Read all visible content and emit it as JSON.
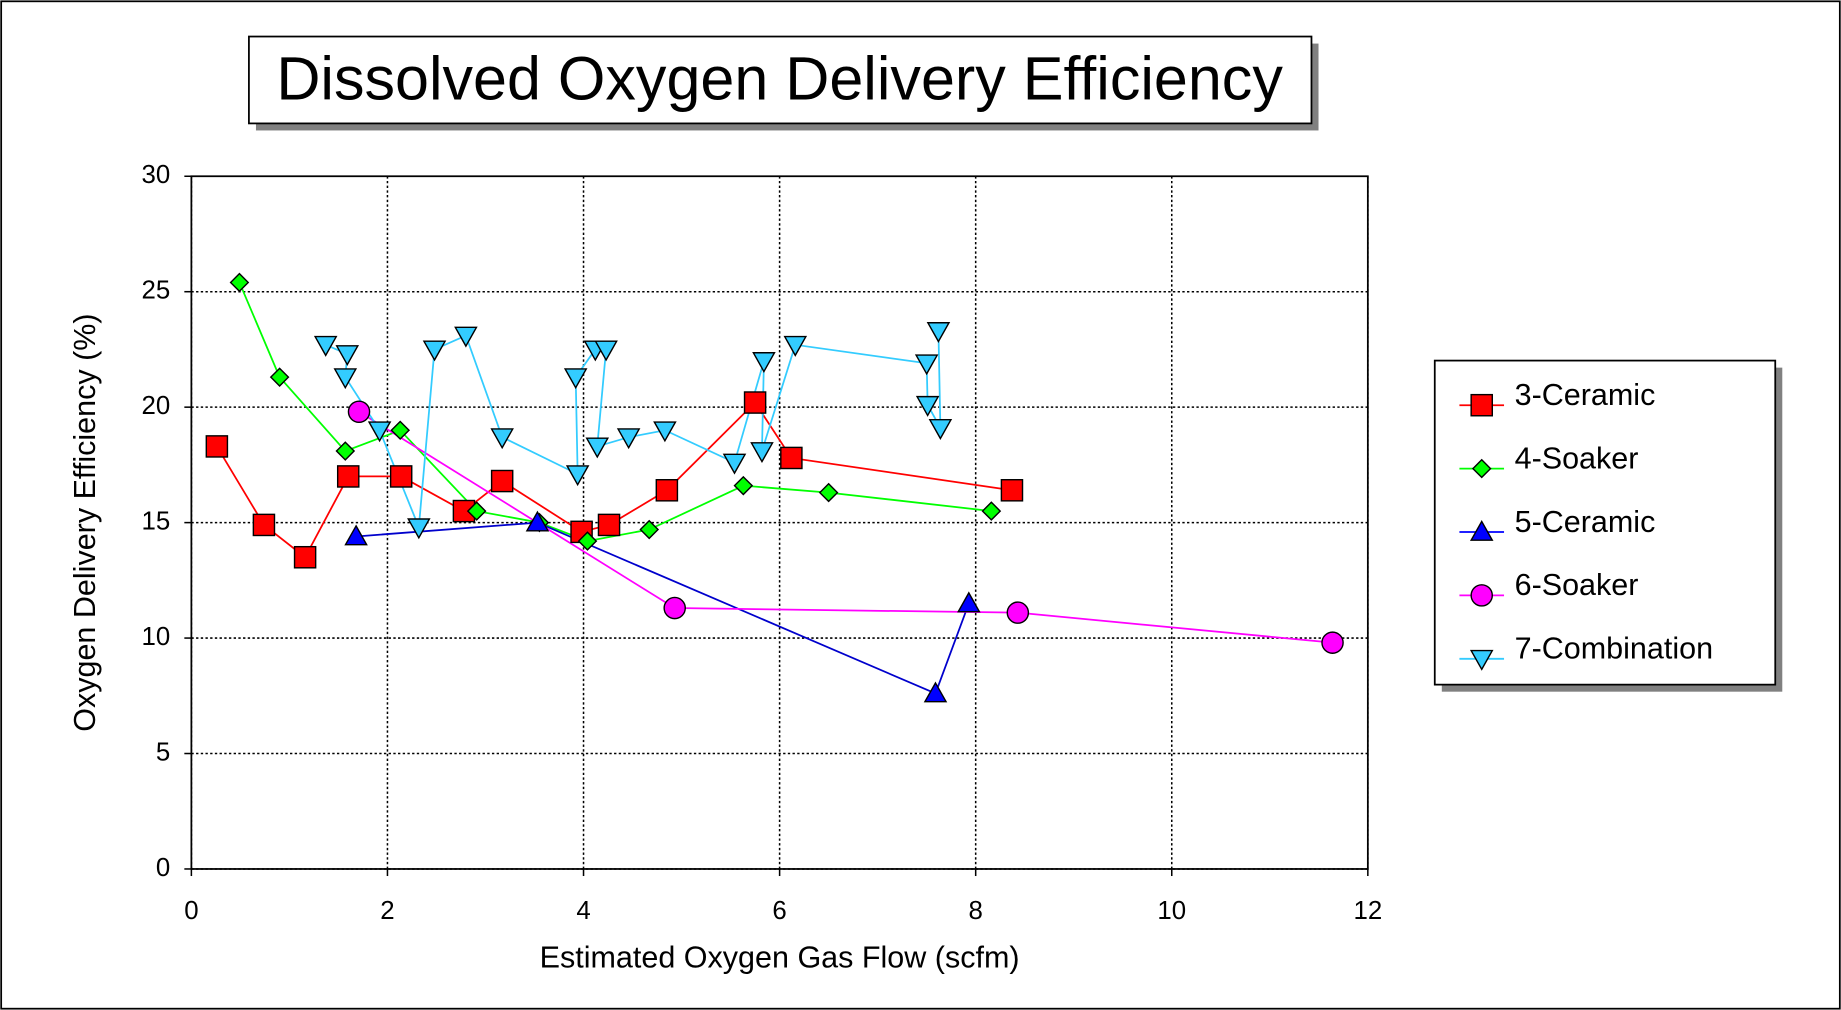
{
  "chart_data": {
    "type": "scatter",
    "title": "Dissolved Oxygen Delivery Efficiency",
    "x_label": "Estimated Oxygen Gas Flow (scfm)",
    "y_label": "Oxygen Delivery Efficiency (%)",
    "xlim": [
      0,
      12
    ],
    "xticks": [
      0,
      2,
      4,
      6,
      8,
      10,
      12
    ],
    "ylim": [
      0,
      30
    ],
    "yticks": [
      0,
      5,
      10,
      15,
      20,
      25,
      30
    ],
    "grid": true,
    "legend": "right",
    "series": [
      {
        "name": "3-Ceramic",
        "color": "#ff0000",
        "marker": "square",
        "x": [
          0.26,
          0.74,
          1.16,
          1.6,
          2.14,
          2.78,
          3.17,
          3.98,
          4.26,
          4.85,
          5.75,
          6.12,
          8.37
        ],
        "values": [
          18.3,
          14.9,
          13.5,
          17.0,
          17.0,
          15.5,
          16.8,
          14.6,
          14.9,
          16.4,
          20.2,
          17.8,
          16.4
        ]
      },
      {
        "name": "4-Soaker",
        "color": "#00ff00",
        "marker": "diamond",
        "x": [
          0.49,
          0.9,
          1.57,
          2.13,
          2.91,
          3.55,
          4.04,
          4.67,
          5.63,
          6.5,
          8.16
        ],
        "values": [
          25.4,
          21.3,
          18.1,
          19.0,
          15.5,
          15.0,
          14.2,
          14.7,
          16.6,
          16.3,
          15.5
        ]
      },
      {
        "name": "5-Ceramic",
        "color": "#0000ff",
        "marker": "triangle-up",
        "x": [
          1.68,
          3.53,
          7.59,
          7.93
        ],
        "values": [
          14.4,
          15.0,
          7.6,
          11.5
        ]
      },
      {
        "name": "6-Soaker",
        "color": "#ff00ff",
        "marker": "circle",
        "x": [
          1.71,
          4.93,
          8.43,
          11.64
        ],
        "values": [
          19.8,
          11.3,
          11.1,
          9.8
        ]
      },
      {
        "name": "7-Combination",
        "color": "#33ccff",
        "marker": "triangle-down",
        "x": [
          1.37,
          1.59,
          1.57,
          1.92,
          2.32,
          2.48,
          2.8,
          3.17,
          3.94,
          3.92,
          4.12,
          4.23,
          4.14,
          4.46,
          4.83,
          5.54,
          5.84,
          5.82,
          6.16,
          7.5,
          7.51,
          7.64,
          7.62
        ],
        "values": [
          22.7,
          22.3,
          21.3,
          19.0,
          14.8,
          22.5,
          23.1,
          18.7,
          17.1,
          21.3,
          22.5,
          22.5,
          18.3,
          18.7,
          19.0,
          17.6,
          22.0,
          18.1,
          22.7,
          21.9,
          20.1,
          19.1,
          23.3
        ]
      }
    ]
  }
}
